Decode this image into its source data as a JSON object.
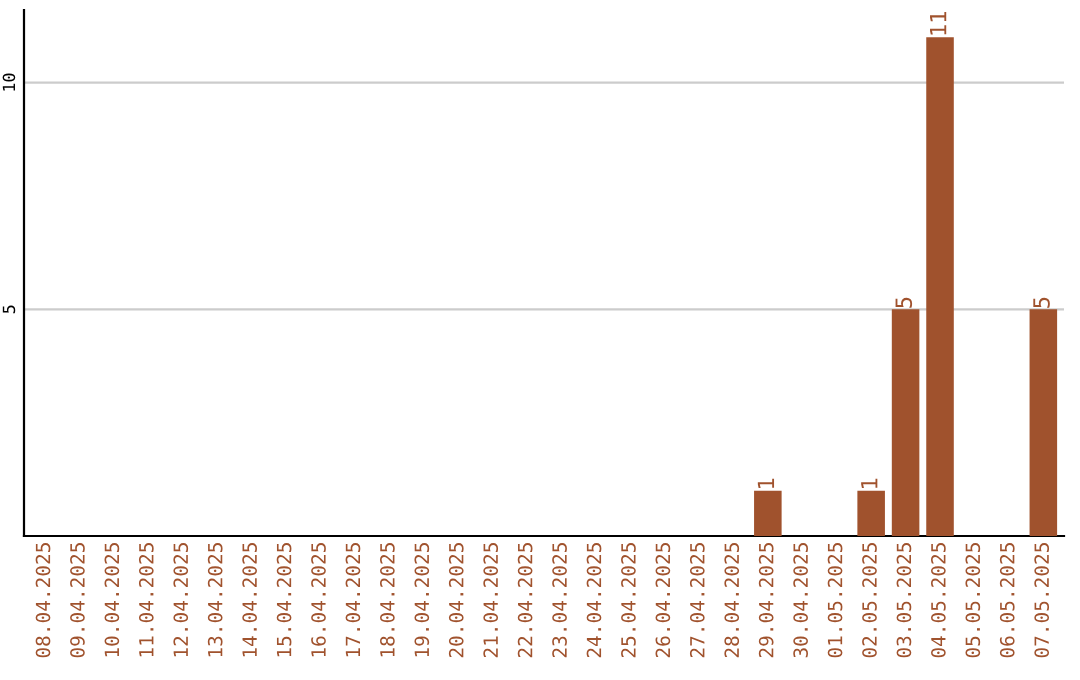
{
  "chart_data": {
    "type": "bar",
    "categories": [
      "08.04.2025",
      "09.04.2025",
      "10.04.2025",
      "11.04.2025",
      "12.04.2025",
      "13.04.2025",
      "14.04.2025",
      "15.04.2025",
      "16.04.2025",
      "17.04.2025",
      "18.04.2025",
      "19.04.2025",
      "20.04.2025",
      "21.04.2025",
      "22.04.2025",
      "23.04.2025",
      "24.04.2025",
      "25.04.2025",
      "26.04.2025",
      "27.04.2025",
      "28.04.2025",
      "29.04.2025",
      "30.04.2025",
      "01.05.2025",
      "02.05.2025",
      "03.05.2025",
      "04.05.2025",
      "05.05.2025",
      "06.05.2025",
      "07.05.2025"
    ],
    "values": [
      0,
      0,
      0,
      0,
      0,
      0,
      0,
      0,
      0,
      0,
      0,
      0,
      0,
      0,
      0,
      0,
      0,
      0,
      0,
      0,
      0,
      1,
      0,
      0,
      1,
      5,
      11,
      0,
      0,
      5
    ],
    "value_labels": [
      null,
      null,
      null,
      null,
      null,
      null,
      null,
      null,
      null,
      null,
      null,
      null,
      null,
      null,
      null,
      null,
      null,
      null,
      null,
      null,
      null,
      "1",
      null,
      null,
      "1",
      "5",
      "11",
      null,
      null,
      "5"
    ],
    "color": "#a0522d",
    "ylim": [
      0,
      11.6
    ],
    "yticks": [
      5,
      10
    ],
    "grid": "y"
  }
}
